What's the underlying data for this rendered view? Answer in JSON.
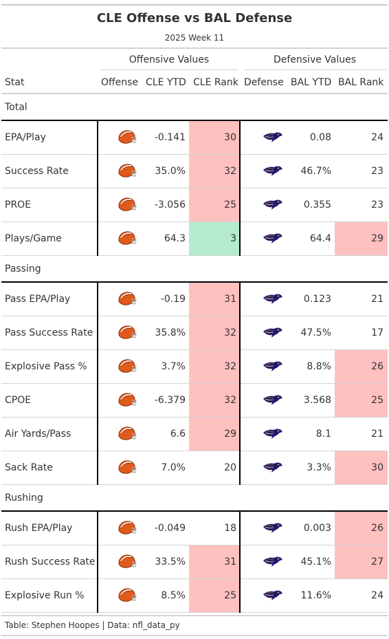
{
  "header": {
    "title": "CLE Offense vs BAL Defense",
    "subtitle": "2025 Week 11"
  },
  "spanners": {
    "offense": "Offensive Values",
    "defense": "Defensive Values"
  },
  "columns": {
    "stat": "Stat",
    "offense": "Offense",
    "cle_ytd": "CLE YTD",
    "cle_rank": "CLE Rank",
    "defense": "Defense",
    "bal_ytd": "BAL YTD",
    "bal_rank": "BAL Rank"
  },
  "colors": {
    "bad": "#ffc0c0",
    "good": "#b4ebcd",
    "browns_helmet": "#e05a1c",
    "ravens_purple": "#241773"
  },
  "groups": [
    {
      "label": "Total",
      "rows": [
        {
          "stat": "EPA/Play",
          "cle_ytd": "-0.141",
          "cle_rank": "30",
          "bal_ytd": "0.08",
          "bal_rank": "24",
          "cle_fill": "bad",
          "bal_fill": "none"
        },
        {
          "stat": "Success Rate",
          "cle_ytd": "35.0%",
          "cle_rank": "32",
          "bal_ytd": "46.7%",
          "bal_rank": "23",
          "cle_fill": "bad",
          "bal_fill": "none"
        },
        {
          "stat": "PROE",
          "cle_ytd": "-3.056",
          "cle_rank": "25",
          "bal_ytd": "0.355",
          "bal_rank": "23",
          "cle_fill": "bad",
          "bal_fill": "none"
        },
        {
          "stat": "Plays/Game",
          "cle_ytd": "64.3",
          "cle_rank": "3",
          "bal_ytd": "64.4",
          "bal_rank": "29",
          "cle_fill": "good",
          "bal_fill": "bad"
        }
      ]
    },
    {
      "label": "Passing",
      "rows": [
        {
          "stat": "Pass EPA/Play",
          "cle_ytd": "-0.19",
          "cle_rank": "31",
          "bal_ytd": "0.123",
          "bal_rank": "21",
          "cle_fill": "bad",
          "bal_fill": "none"
        },
        {
          "stat": "Pass Success Rate",
          "cle_ytd": "35.8%",
          "cle_rank": "32",
          "bal_ytd": "47.5%",
          "bal_rank": "17",
          "cle_fill": "bad",
          "bal_fill": "none"
        },
        {
          "stat": "Explosive Pass %",
          "cle_ytd": "3.7%",
          "cle_rank": "32",
          "bal_ytd": "8.8%",
          "bal_rank": "26",
          "cle_fill": "bad",
          "bal_fill": "bad"
        },
        {
          "stat": "CPOE",
          "cle_ytd": "-6.379",
          "cle_rank": "32",
          "bal_ytd": "3.568",
          "bal_rank": "25",
          "cle_fill": "bad",
          "bal_fill": "bad"
        },
        {
          "stat": "Air Yards/Pass",
          "cle_ytd": "6.6",
          "cle_rank": "29",
          "bal_ytd": "8.1",
          "bal_rank": "21",
          "cle_fill": "bad",
          "bal_fill": "none"
        },
        {
          "stat": "Sack Rate",
          "cle_ytd": "7.0%",
          "cle_rank": "20",
          "bal_ytd": "3.3%",
          "bal_rank": "30",
          "cle_fill": "none",
          "bal_fill": "bad"
        }
      ]
    },
    {
      "label": "Rushing",
      "rows": [
        {
          "stat": "Rush EPA/Play",
          "cle_ytd": "-0.049",
          "cle_rank": "18",
          "bal_ytd": "0.003",
          "bal_rank": "26",
          "cle_fill": "none",
          "bal_fill": "bad"
        },
        {
          "stat": "Rush Success Rate",
          "cle_ytd": "33.5%",
          "cle_rank": "31",
          "bal_ytd": "45.1%",
          "bal_rank": "27",
          "cle_fill": "bad",
          "bal_fill": "bad"
        },
        {
          "stat": "Explosive Run %",
          "cle_ytd": "8.5%",
          "cle_rank": "25",
          "bal_ytd": "11.6%",
          "bal_rank": "24",
          "cle_fill": "bad",
          "bal_fill": "none"
        }
      ]
    }
  ],
  "icons": {
    "offense": "browns-helmet-icon",
    "defense": "ravens-logo-icon"
  },
  "footer": {
    "source": "Table: Stephen Hoopes | Data: nfl_data_py"
  }
}
